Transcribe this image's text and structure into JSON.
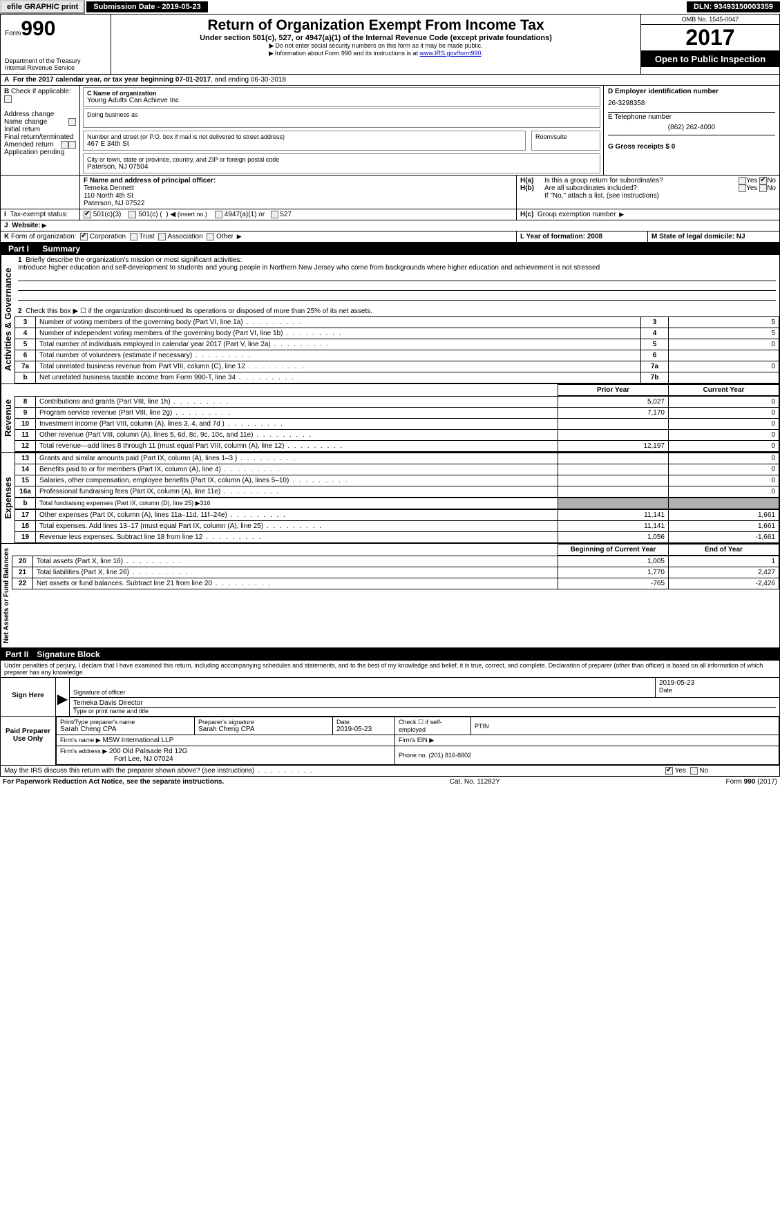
{
  "topbar": {
    "efile": "efile GRAPHIC print",
    "submission": "Submission Date - 2019-05-23",
    "dln": "DLN: 93493150003359"
  },
  "header": {
    "form_prefix": "Form",
    "form_number": "990",
    "dept": "Department of the Treasury",
    "irs": "Internal Revenue Service",
    "title": "Return of Organization Exempt From Income Tax",
    "subtitle": "Under section 501(c), 527, or 4947(a)(1) of the Internal Revenue Code (except private foundations)",
    "note1": "Do not enter social security numbers on this form as it may be made public.",
    "note2_pre": "Information about Form 990 and its instructions is at ",
    "note2_link": "www.IRS.gov/form990",
    "omb": "OMB No. 1545-0047",
    "year": "2017",
    "open": "Open to Public Inspection"
  },
  "period": {
    "text_a": "For the 2017 calendar year, or tax year beginning 07-01-2017",
    "text_b": ", and ending 06-30-2018"
  },
  "box_b": {
    "title": "Check if applicable:",
    "items": [
      "Address change",
      "Name change",
      "Initial return",
      "Final return/terminated",
      "Amended return",
      "Application pending"
    ]
  },
  "box_c": {
    "label": "C Name of organization",
    "org": "Young Adults Can Achieve Inc",
    "dba_label": "Doing business as",
    "street_label": "Number and street (or P.O. box if mail is not delivered to street address)",
    "room_label": "Room/suite",
    "street": "467 E 34th St",
    "city_label": "City or town, state or province, country, and ZIP or foreign postal code",
    "city": "Paterson, NJ  07504"
  },
  "box_d": {
    "label": "D Employer identification number",
    "ein": "26-3298358"
  },
  "box_e": {
    "label": "E Telephone number",
    "phone": "(862) 262-4000"
  },
  "box_g": {
    "label": "G Gross receipts $ 0"
  },
  "box_f": {
    "label": "F  Name and address of principal officer:",
    "name": "Temeka Dennett",
    "addr1": "110 North 4th St",
    "addr2": "Paterson, NJ  07522"
  },
  "box_h": {
    "ha": "Is this a group return for subordinates?",
    "hb": "Are all subordinates included?",
    "hb_note": "If \"No,\" attach a list. (see instructions)",
    "hc": "Group exemption number",
    "yes": "Yes",
    "no": "No"
  },
  "tax_status": {
    "label": "Tax-exempt status:",
    "opt1": "501(c)(3)",
    "opt2_a": "501(c) (",
    "opt2_b": ")",
    "opt2_hint": "(insert no.)",
    "opt3": "4947(a)(1) or",
    "opt4": "527"
  },
  "website": {
    "label": "Website:"
  },
  "k_form": {
    "label": "Form of organization:",
    "opts": [
      "Corporation",
      "Trust",
      "Association",
      "Other"
    ]
  },
  "l_year": {
    "label": "L Year of formation: 2008"
  },
  "m_state": {
    "label": "M State of legal domicile: NJ"
  },
  "part1": {
    "label": "Part I",
    "title": "Summary",
    "side_activities": "Activities & Governance",
    "side_revenue": "Revenue",
    "side_expenses": "Expenses",
    "side_net": "Net Assets or Fund Balances",
    "line1_label": "Briefly describe the organization's mission or most significant activities:",
    "line1_text": "Introduce higher education and self-development to students and young people in Northern New Jersey who come from backgrounds where higher education and achievement is not stressed",
    "line2": "Check this box ▶ ☐ if the organization discontinued its operations or disposed of more than 25% of its net assets.",
    "rows_gov": [
      {
        "n": "3",
        "t": "Number of voting members of the governing body (Part VI, line 1a)",
        "c": "3",
        "v": "5"
      },
      {
        "n": "4",
        "t": "Number of independent voting members of the governing body (Part VI, line 1b)",
        "c": "4",
        "v": "5"
      },
      {
        "n": "5",
        "t": "Total number of individuals employed in calendar year 2017 (Part V, line 2a)",
        "c": "5",
        "v": "0"
      },
      {
        "n": "6",
        "t": "Total number of volunteers (estimate if necessary)",
        "c": "6",
        "v": ""
      },
      {
        "n": "7a",
        "t": "Total unrelated business revenue from Part VIII, column (C), line 12",
        "c": "7a",
        "v": "0"
      },
      {
        "n": "b",
        "t": "Net unrelated business taxable income from Form 990-T, line 34",
        "c": "7b",
        "v": ""
      }
    ],
    "header_prior": "Prior Year",
    "header_current": "Current Year",
    "rows_rev": [
      {
        "n": "8",
        "t": "Contributions and grants (Part VIII, line 1h)",
        "p": "5,027",
        "c": "0"
      },
      {
        "n": "9",
        "t": "Program service revenue (Part VIII, line 2g)",
        "p": "7,170",
        "c": "0"
      },
      {
        "n": "10",
        "t": "Investment income (Part VIII, column (A), lines 3, 4, and 7d )",
        "p": "",
        "c": "0"
      },
      {
        "n": "11",
        "t": "Other revenue (Part VIII, column (A), lines 5, 6d, 8c, 9c, 10c, and 11e)",
        "p": "",
        "c": "0"
      },
      {
        "n": "12",
        "t": "Total revenue—add lines 8 through 11 (must equal Part VIII, column (A), line 12)",
        "p": "12,197",
        "c": "0"
      }
    ],
    "rows_exp": [
      {
        "n": "13",
        "t": "Grants and similar amounts paid (Part IX, column (A), lines 1–3 )",
        "p": "",
        "c": "0"
      },
      {
        "n": "14",
        "t": "Benefits paid to or for members (Part IX, column (A), line 4)",
        "p": "",
        "c": "0"
      },
      {
        "n": "15",
        "t": "Salaries, other compensation, employee benefits (Part IX, column (A), lines 5–10)",
        "p": "",
        "c": "0"
      },
      {
        "n": "16a",
        "t": "Professional fundraising fees (Part IX, column (A), line 11e)",
        "p": "",
        "c": "0"
      }
    ],
    "row_16b": {
      "n": "b",
      "t": "Total fundraising expenses (Part IX, column (D), line 25) ▶316"
    },
    "rows_exp2": [
      {
        "n": "17",
        "t": "Other expenses (Part IX, column (A), lines 11a–11d, 11f–24e)",
        "p": "11,141",
        "c": "1,661"
      },
      {
        "n": "18",
        "t": "Total expenses. Add lines 13–17 (must equal Part IX, column (A), line 25)",
        "p": "11,141",
        "c": "1,661"
      },
      {
        "n": "19",
        "t": "Revenue less expenses. Subtract line 18 from line 12",
        "p": "1,056",
        "c": "-1,661"
      }
    ],
    "header_begin": "Beginning of Current Year",
    "header_end": "End of Year",
    "rows_net": [
      {
        "n": "20",
        "t": "Total assets (Part X, line 16)",
        "p": "1,005",
        "c": "1"
      },
      {
        "n": "21",
        "t": "Total liabilities (Part X, line 26)",
        "p": "1,770",
        "c": "2,427"
      },
      {
        "n": "22",
        "t": "Net assets or fund balances. Subtract line 21 from line 20",
        "p": "-765",
        "c": "-2,426"
      }
    ]
  },
  "part2": {
    "label": "Part II",
    "title": "Signature Block",
    "penalties": "Under penalties of perjury, I declare that I have examined this return, including accompanying schedules and statements, and to the best of my knowledge and belief, it is true, correct, and complete. Declaration of preparer (other than officer) is based on all information of which preparer has any knowledge.",
    "sign_here": "Sign Here",
    "sig_officer": "Signature of officer",
    "sig_date": "2019-05-23",
    "date_label": "Date",
    "officer_name": "Temeka Davis  Director",
    "type_name": "Type or print name and title",
    "paid": "Paid Preparer Use Only",
    "prep_name_label": "Print/Type preparer's name",
    "prep_name": "Sarah Cheng CPA",
    "prep_sig_label": "Preparer's signature",
    "prep_sig": "Sarah Cheng CPA",
    "prep_date_label": "Date",
    "prep_date": "2019-05-23",
    "check_self": "Check ☐ if self-employed",
    "ptin": "PTIN",
    "firm_name_label": "Firm's name   ▶",
    "firm_name": "MSW International LLP",
    "firm_ein": "Firm's EIN ▶",
    "firm_addr_label": "Firm's address ▶",
    "firm_addr1": "200 Old Palisade Rd 12G",
    "firm_addr2": "Fort Lee, NJ  07024",
    "firm_phone": "Phone no. (201) 816-8802",
    "may_irs": "May the IRS discuss this return with the preparer shown above? (see instructions)",
    "yes": "Yes",
    "no": "No"
  },
  "footer": {
    "pra": "For Paperwork Reduction Act Notice, see the separate instructions.",
    "cat": "Cat. No. 11282Y",
    "form": "Form 990 (2017)"
  }
}
